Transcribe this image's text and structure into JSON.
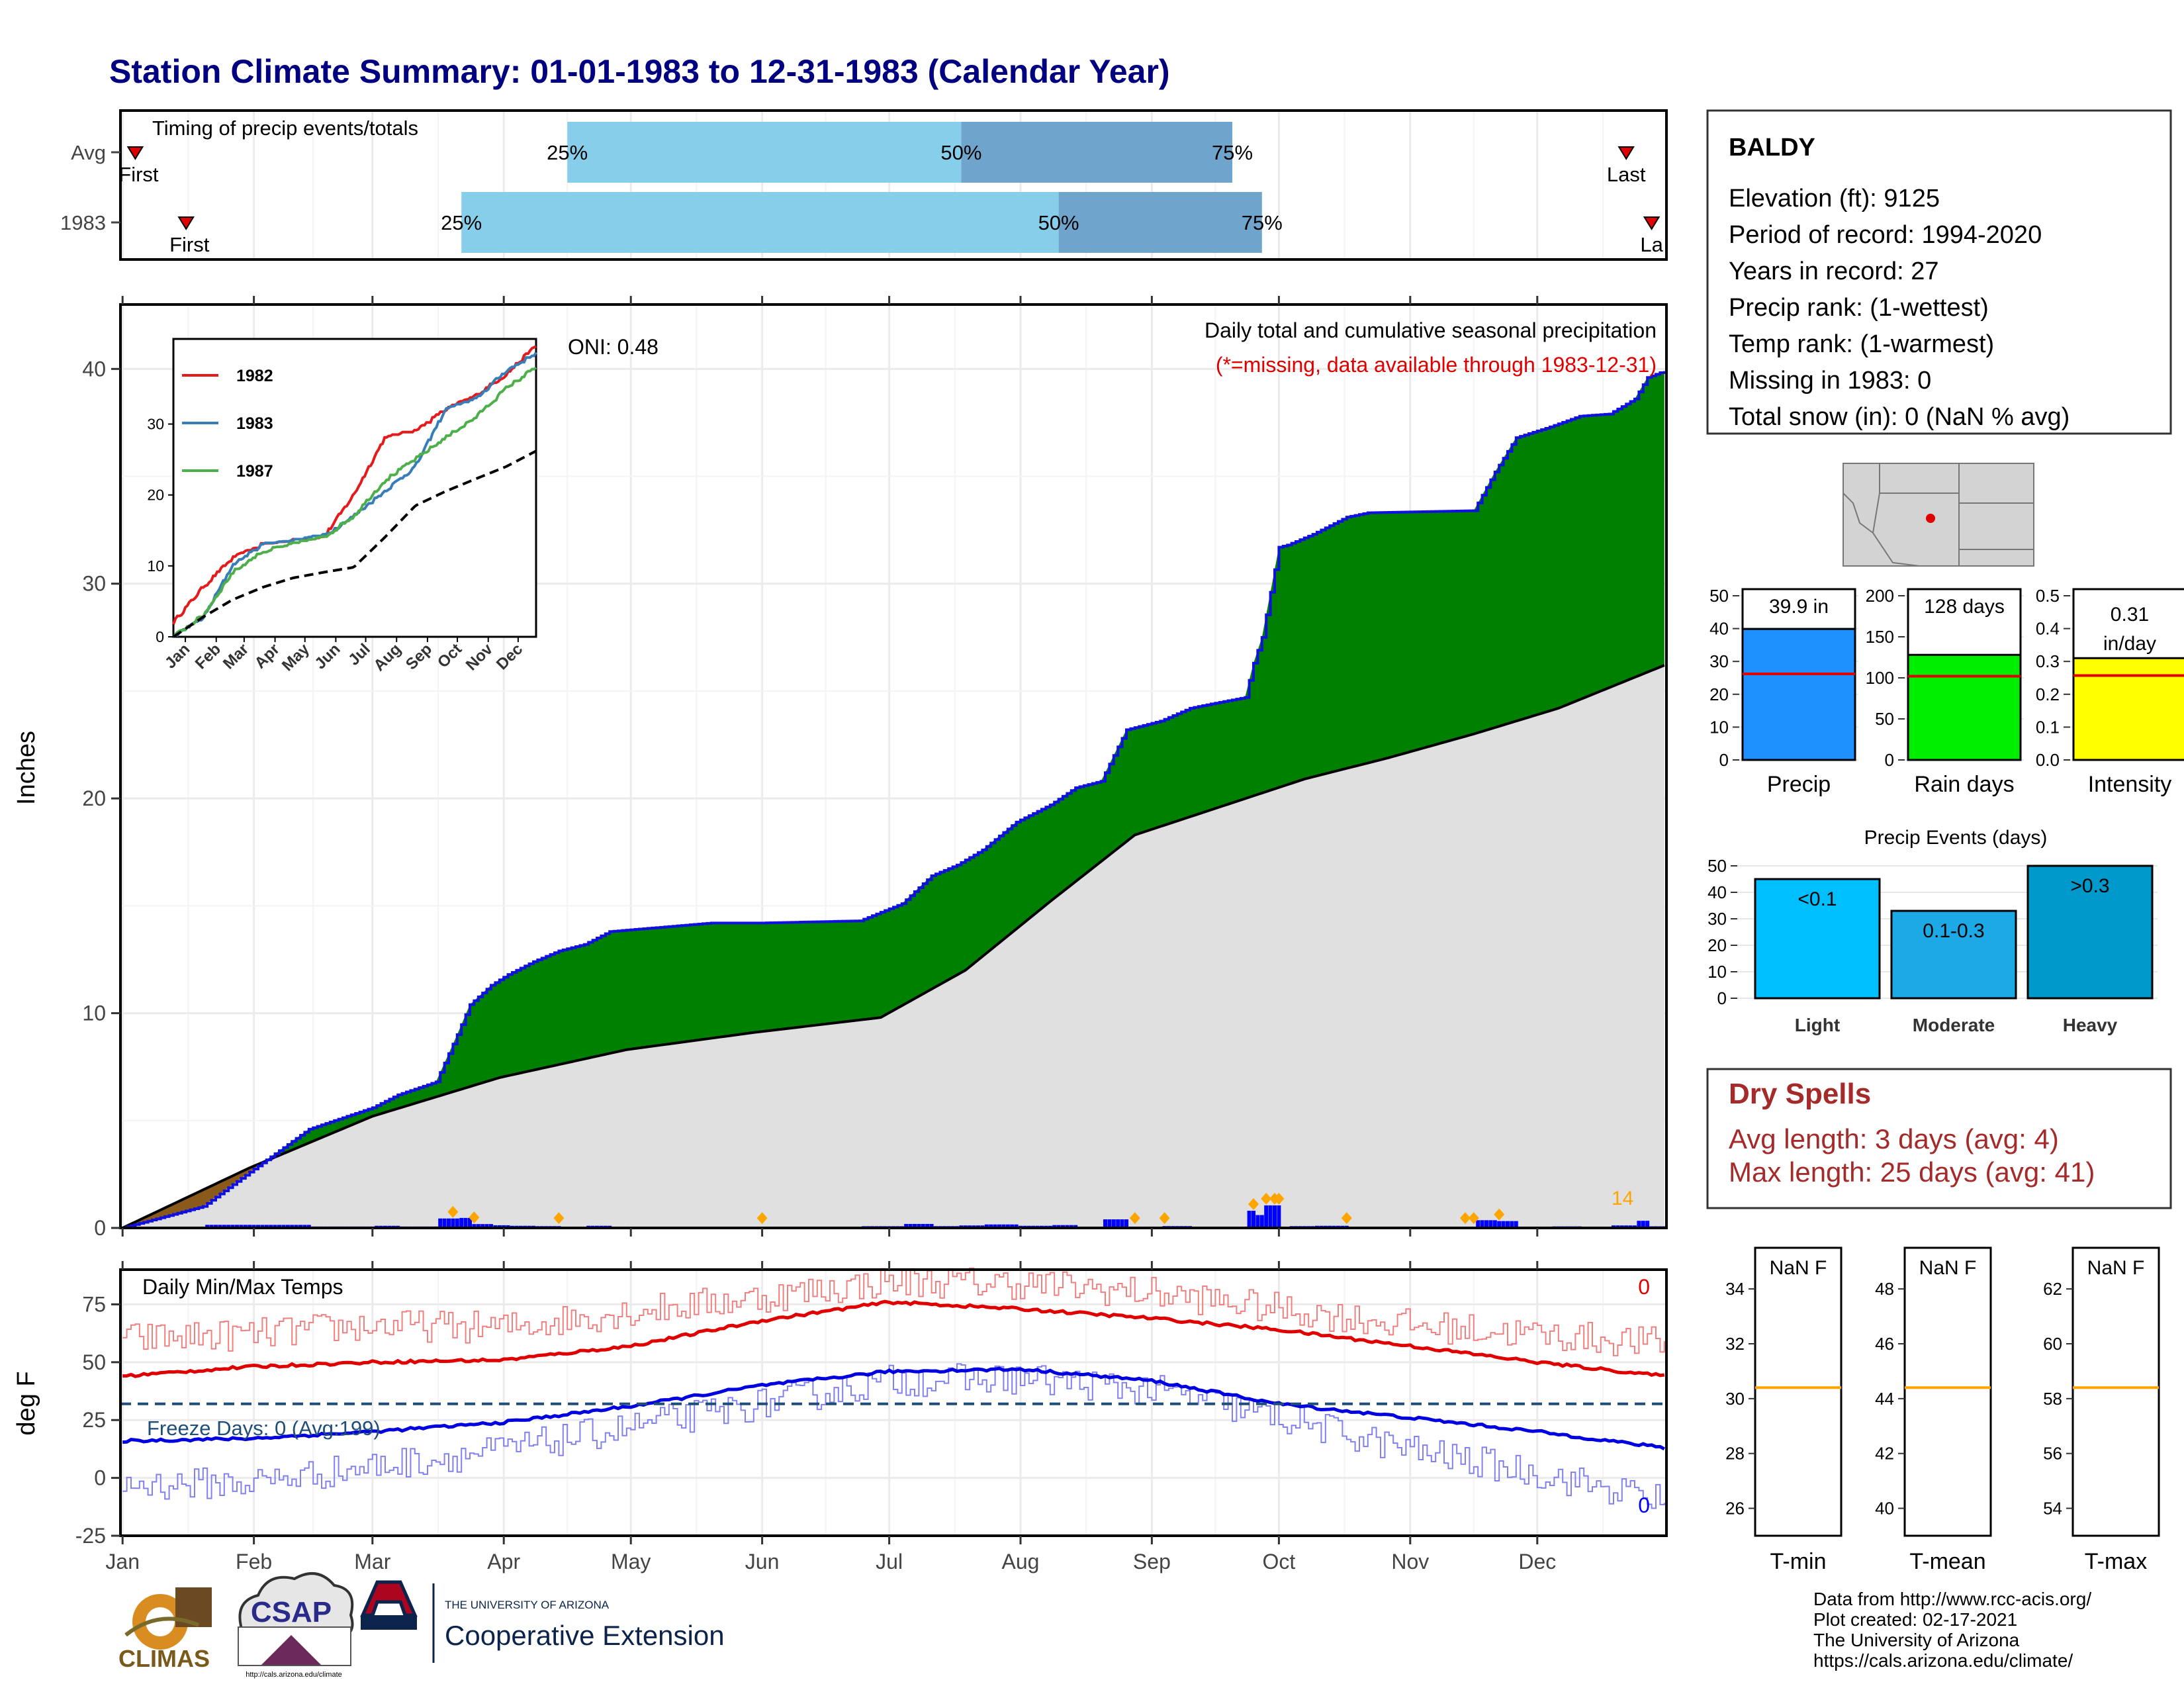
{
  "title": "Station Climate Summary: 01-01-1983 to 12-31-1983 (Calendar Year)",
  "months": [
    "Jan",
    "Feb",
    "Mar",
    "Apr",
    "May",
    "Jun",
    "Jul",
    "Aug",
    "Sep",
    "Oct",
    "Nov",
    "Dec"
  ],
  "timing": {
    "title": "Timing of precip events/totals",
    "rows": [
      {
        "label": "Avg",
        "first_label": "First",
        "last_label": "Last",
        "first_day": 4,
        "last_day": 356,
        "p25_day": 106,
        "p50_day": 199,
        "p75_day": 263,
        "p25_label": "25%",
        "p50_label": "50%",
        "p75_label": "75%"
      },
      {
        "label": "1983",
        "first_label": "First",
        "last_label": "La",
        "first_day": 16,
        "last_day": 362,
        "p25_day": 81,
        "p50_day": 222,
        "p75_day": 270,
        "p25_label": "25%",
        "p50_label": "50%",
        "p75_label": "75%"
      }
    ]
  },
  "main": {
    "ylabel": "Inches",
    "oni": "ONI: 0.48",
    "note1": "Daily total and cumulative seasonal precipitation",
    "note2": "(*=missing, data available through 1983-12-31)",
    "corner_count": "14",
    "yticks": [
      0,
      10,
      20,
      30,
      40
    ],
    "colors": {
      "above_avg": "#008000",
      "below_avg": "#8B5A1B",
      "avg_fill": "#E0E0E0",
      "daily_bar": "#0000FF",
      "marker": "#FFA500"
    }
  },
  "inset": {
    "legend": [
      {
        "name": "1982",
        "color": "#E41A1C"
      },
      {
        "name": "1983",
        "color": "#377EB8"
      },
      {
        "name": "1987",
        "color": "#4DAF4A"
      }
    ],
    "yticks": [
      0,
      10,
      20,
      30
    ]
  },
  "temps": {
    "title": "Daily Min/Max Temps",
    "ylabel": "deg F",
    "freeze_label": "Freeze Days: 0 (Avg:199)",
    "count_max": "0",
    "count_min": "0",
    "yticks": [
      -25,
      0,
      25,
      50,
      75
    ],
    "freeze_line": 32
  },
  "station": {
    "name": "BALDY",
    "lines": [
      "Elevation (ft): 9125",
      "Period of record: 1994-2020",
      "Years in record: 27",
      "Precip rank:  (1-wettest)",
      "Temp rank:  (1-warmest)",
      "Missing in 1983: 0",
      "Total snow (in): 0 (NaN % avg)"
    ]
  },
  "small_bars": [
    {
      "label": "Precip",
      "value_label": "39.9 in",
      "value": 39.9,
      "avg": 26.2,
      "max": 50,
      "ticks": [
        0,
        10,
        20,
        30,
        40,
        50
      ],
      "color": "#1E90FF"
    },
    {
      "label": "Rain days",
      "value_label": "128 days",
      "value": 128,
      "avg": 102,
      "max": 200,
      "ticks": [
        0,
        50,
        100,
        150,
        200
      ],
      "color": "#00EE00"
    },
    {
      "label": "Intensity",
      "value_label": "0.31 in/day",
      "value": 0.31,
      "avg": 0.257,
      "max": 0.5,
      "ticks": [
        0.0,
        0.1,
        0.2,
        0.3,
        0.4,
        0.5
      ],
      "color": "#FFFF00"
    }
  ],
  "events": {
    "title": "Precip Events (days)",
    "ticks": [
      0,
      10,
      20,
      30,
      40,
      50
    ],
    "max": 52,
    "bars": [
      {
        "label": "Light",
        "inner": "<0.1",
        "value": 45,
        "color": "#00BFFF"
      },
      {
        "label": "Moderate",
        "inner": "0.1-0.3",
        "value": 33,
        "color": "#1CA9E6"
      },
      {
        "label": "Heavy",
        "inner": ">0.3",
        "value": 50,
        "color": "#0099CC"
      }
    ]
  },
  "dry_spells": {
    "title": "Dry Spells",
    "avg": "Avg length: 3 days (avg: 4)",
    "max": "Max length: 25 days (avg: 41)"
  },
  "temp_panels": [
    {
      "label": "T-min",
      "value_label": "NaN F",
      "ticks": [
        26,
        28,
        30,
        32,
        34
      ],
      "min": 25,
      "max": 35.5,
      "avg": 30.4
    },
    {
      "label": "T-mean",
      "value_label": "NaN F",
      "ticks": [
        40,
        42,
        44,
        46,
        48
      ],
      "min": 39,
      "max": 49.5,
      "avg": 44.4
    },
    {
      "label": "T-max",
      "value_label": "NaN F",
      "ticks": [
        54,
        56,
        58,
        60,
        62
      ],
      "min": 53,
      "max": 63.5,
      "avg": 58.4
    }
  ],
  "footer": {
    "lines": [
      "Data from http://www.rcc-acis.org/",
      "Plot created: 02-17-2021",
      "The University of Arizona",
      "https://cals.arizona.edu/climate/"
    ],
    "logo_climas": "CLIMAS",
    "logo_csap": "CSAP",
    "logo_csap_url": "http://cals.arizona.edu/climate",
    "ua_small": "THE UNIVERSITY OF ARIZONA",
    "ua_big": "Cooperative Extension"
  },
  "chart_data": [
    {
      "type": "area",
      "title": "Daily total and cumulative seasonal precipitation",
      "ylabel": "Inches",
      "ylim": [
        0,
        43
      ],
      "x_units": "day of year (1983)",
      "series": [
        {
          "name": "1983 cumulative",
          "x": [
            1,
            20,
            31,
            38,
            45,
            60,
            66,
            75,
            80,
            83,
            88,
            92,
            98,
            104,
            110,
            116,
            140,
            152,
            175,
            185,
            192,
            198,
            204,
            212,
            220,
            226,
            232,
            238,
            246,
            253,
            258,
            266,
            268,
            270,
            272,
            274,
            276,
            282,
            290,
            295,
            320,
            325,
            330,
            338,
            345,
            352,
            358,
            361,
            365
          ],
          "values": [
            0,
            1,
            2.6,
            3.6,
            4.6,
            5.6,
            6.2,
            6.8,
            9.0,
            10.4,
            11.3,
            11.8,
            12.4,
            12.9,
            13.2,
            13.8,
            14.2,
            14.2,
            14.3,
            15.1,
            16.4,
            16.9,
            17.6,
            18.9,
            19.7,
            20.5,
            20.8,
            23.2,
            23.6,
            24.2,
            24.4,
            24.7,
            26.3,
            27.5,
            29.6,
            31.7,
            31.8,
            32.3,
            33.1,
            33.3,
            33.4,
            35.2,
            36.8,
            37.3,
            37.8,
            37.9,
            38.6,
            39.6,
            39.9
          ]
        },
        {
          "name": "Average cumulative",
          "x": [
            1,
            31,
            60,
            90,
            120,
            150,
            180,
            200,
            220,
            240,
            260,
            280,
            300,
            320,
            340,
            365
          ],
          "values": [
            0,
            2.8,
            5.2,
            7.0,
            8.3,
            9.1,
            9.8,
            12.0,
            15.2,
            18.3,
            19.6,
            20.9,
            21.9,
            23.0,
            24.2,
            26.2
          ]
        }
      ],
      "daily_marker_days": [
        79,
        84,
        104,
        152,
        240,
        247,
        268,
        271,
        273,
        274,
        290,
        318,
        320,
        326
      ]
    },
    {
      "type": "line",
      "title": "Daily Min/Max Temps",
      "ylabel": "deg F",
      "ylim": [
        -25,
        90
      ],
      "x_units": "day of year (1983)",
      "series": [
        {
          "name": "Avg max",
          "x": [
            1,
            31,
            60,
            91,
            121,
            152,
            182,
            213,
            244,
            274,
            305,
            335,
            365
          ],
          "values": [
            44,
            48,
            50,
            51,
            57,
            68,
            76,
            73,
            69,
            64,
            57,
            50,
            44
          ]
        },
        {
          "name": "Avg min",
          "x": [
            1,
            31,
            60,
            91,
            121,
            152,
            182,
            213,
            244,
            274,
            305,
            335,
            365
          ],
          "values": [
            16,
            17,
            20,
            24,
            31,
            40,
            46,
            47,
            42,
            32,
            26,
            20,
            13
          ]
        },
        {
          "name": "Daily max",
          "x": [
            1,
            31,
            60,
            91,
            121,
            152,
            182,
            213,
            244,
            274,
            305,
            335,
            365
          ],
          "values": [
            60,
            62,
            66,
            65,
            72,
            78,
            85,
            84,
            80,
            73,
            66,
            62,
            58
          ]
        },
        {
          "name": "Daily min",
          "x": [
            1,
            31,
            60,
            91,
            121,
            152,
            182,
            213,
            244,
            274,
            305,
            335,
            365
          ],
          "values": [
            -3,
            -2,
            5,
            12,
            22,
            32,
            42,
            43,
            38,
            26,
            12,
            2,
            -10
          ]
        }
      ]
    },
    {
      "type": "line",
      "title": "",
      "ylim": [
        0,
        42
      ],
      "x_units": "month",
      "series": [
        {
          "name": "1982",
          "x": [
            1,
            31,
            60,
            91,
            121,
            152,
            182,
            213,
            244,
            274,
            305,
            335,
            365
          ],
          "values": [
            2,
            7,
            11,
            13,
            13.5,
            14,
            20,
            28,
            29,
            32,
            34,
            37,
            41
          ]
        },
        {
          "name": "1983",
          "x": [
            1,
            31,
            60,
            91,
            121,
            152,
            182,
            213,
            244,
            274,
            305,
            335,
            365
          ],
          "values": [
            0,
            2.6,
            10,
            13,
            13.5,
            14.2,
            17,
            20.5,
            24,
            32,
            33.5,
            37.5,
            39.9
          ]
        },
        {
          "name": "1987",
          "x": [
            1,
            31,
            60,
            91,
            121,
            152,
            182,
            213,
            244,
            274,
            305,
            335,
            365
          ],
          "values": [
            0,
            3,
            9,
            12,
            13,
            14,
            17,
            22,
            25,
            28,
            31,
            35,
            38
          ]
        },
        {
          "name": "Average",
          "x": [
            1,
            31,
            60,
            91,
            121,
            152,
            182,
            213,
            244,
            274,
            305,
            335,
            365
          ],
          "values": [
            0,
            2.8,
            5.2,
            7,
            8.3,
            9.1,
            9.8,
            14,
            18.5,
            20.5,
            22.3,
            24,
            26.2
          ]
        }
      ]
    }
  ]
}
